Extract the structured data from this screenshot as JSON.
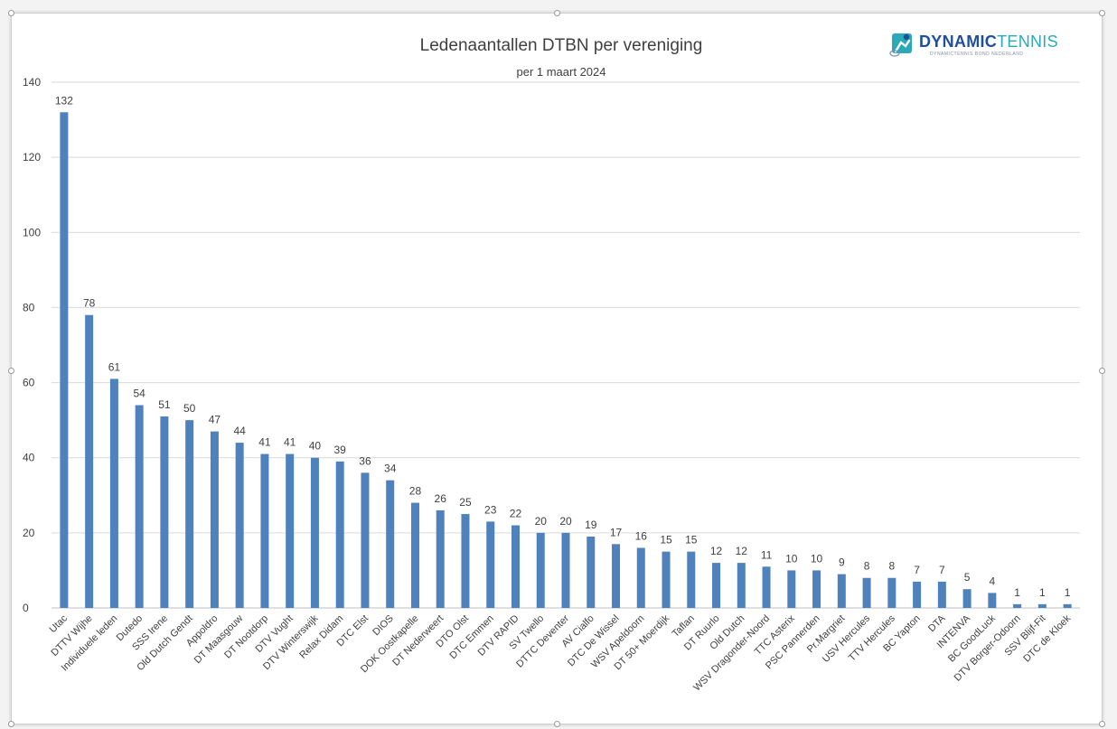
{
  "logo": {
    "text_bold": "DYNAMIC",
    "text_light": "TENNIS",
    "subtext": "DYNAMICTENNIS BOND NEDERLAND",
    "color_dark": "#1f4e9c",
    "color_accent": "#2aa9b8",
    "icon": "tennis-player-icon"
  },
  "chart_data": {
    "type": "bar",
    "title": "Ledenaantallen DTBN per vereniging",
    "subtitle": "per 1 maart 2024",
    "xlabel": "",
    "ylabel": "",
    "ylim": [
      0,
      140
    ],
    "yticks": [
      0,
      20,
      40,
      60,
      80,
      100,
      120,
      140
    ],
    "grid": true,
    "bar_color": "#4f81bd",
    "categories": [
      "Utac",
      "DTTV Wijhe",
      "Individuele leden",
      "Dutedo",
      "SSS Irene",
      "Old Dutch Gendt",
      "Appoldro",
      "DT Maasgouw",
      "DT Nootdorp",
      "DTV Vught",
      "DTV Winterswijk",
      "Relax Didam",
      "DTC Elst",
      "DIOS",
      "DOK Oostkapelle",
      "DT Nederweert",
      "DTO Olst",
      "DTC Emmen",
      "DTV RAPID",
      "SV Twello",
      "DTTC Deventer",
      "AV Cialfo",
      "DTC De Wissel",
      "WSV Apeldoorn",
      "DT 50+ Moerdijk",
      "Taflan",
      "DT Ruurlo",
      "Old Dutch",
      "WSV Dragonder-Noord",
      "TTC Asterix",
      "PSC Pannerden",
      "Pr.Margriet",
      "USV Hercules",
      "TTV Hercules",
      "BC Yapton",
      "DTA",
      "INTENVA",
      "BC GoodLuck",
      "DTV Borger-Odoorn",
      "SSV Blijf-Fit",
      "DTC de Kloek"
    ],
    "values": [
      132,
      78,
      61,
      54,
      51,
      50,
      47,
      44,
      41,
      41,
      40,
      39,
      36,
      34,
      28,
      26,
      25,
      23,
      22,
      20,
      20,
      19,
      17,
      16,
      15,
      15,
      12,
      12,
      11,
      10,
      10,
      9,
      8,
      8,
      7,
      7,
      5,
      4,
      1,
      1,
      1
    ]
  }
}
